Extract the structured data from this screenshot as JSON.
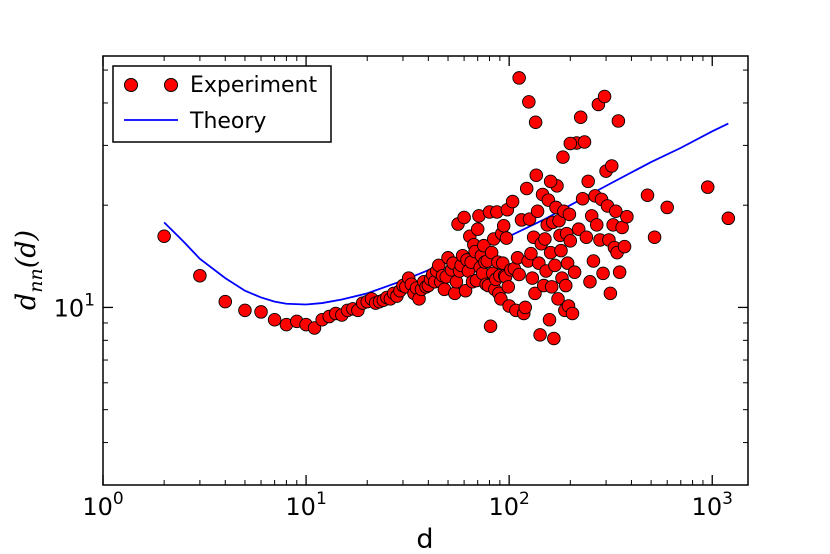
{
  "chart_data": {
    "type": "scatter",
    "title": "",
    "xlabel": "d",
    "ylabel": {
      "base": "d",
      "subscript": "nn",
      "argument": "(d)"
    },
    "xscale": "log",
    "yscale": "log",
    "xlim": [
      1,
      1500
    ],
    "ylim": [
      3.0,
      55
    ],
    "grid": false,
    "legend_position": "top-left",
    "x_ticks": [
      {
        "value": 1,
        "base": "10",
        "exp": "0"
      },
      {
        "value": 10,
        "base": "10",
        "exp": "1"
      },
      {
        "value": 100,
        "base": "10",
        "exp": "2"
      },
      {
        "value": 1000,
        "base": "10",
        "exp": "3"
      }
    ],
    "y_ticks": [
      {
        "value": 10,
        "base": "10",
        "exp": "1"
      }
    ],
    "y_minor_ticks": [
      4,
      5,
      6,
      7,
      8,
      9,
      20,
      30,
      40,
      50
    ],
    "x_minor_ticks": [
      2,
      3,
      4,
      5,
      6,
      7,
      8,
      9,
      20,
      30,
      40,
      50,
      60,
      70,
      80,
      90,
      200,
      300,
      400,
      500,
      600,
      700,
      800,
      900
    ],
    "series": [
      {
        "name": "Experiment",
        "kind": "scatter",
        "color": "#ff0000",
        "edge_color": "#000000",
        "points": [
          [
            2,
            16.2
          ],
          [
            3,
            12.4
          ],
          [
            4,
            10.4
          ],
          [
            5,
            9.8
          ],
          [
            6,
            9.7
          ],
          [
            7,
            9.2
          ],
          [
            8,
            8.9
          ],
          [
            9,
            9.1
          ],
          [
            10,
            8.9
          ],
          [
            11,
            8.7
          ],
          [
            12,
            9.2
          ],
          [
            13,
            9.4
          ],
          [
            14,
            9.6
          ],
          [
            15,
            9.5
          ],
          [
            16,
            9.8
          ],
          [
            17,
            9.9
          ],
          [
            18,
            9.8
          ],
          [
            19,
            10.3
          ],
          [
            20,
            10.4
          ],
          [
            21,
            10.6
          ],
          [
            22,
            10.3
          ],
          [
            23,
            10.4
          ],
          [
            24,
            10.5
          ],
          [
            25,
            10.7
          ],
          [
            26,
            10.6
          ],
          [
            27,
            11.0
          ],
          [
            28,
            10.8
          ],
          [
            29,
            11.2
          ],
          [
            30,
            11.6
          ],
          [
            31,
            11.5
          ],
          [
            32,
            12.2
          ],
          [
            33,
            11.7
          ],
          [
            34,
            11.0
          ],
          [
            35,
            11.4
          ],
          [
            36,
            10.6
          ],
          [
            37,
            11.3
          ],
          [
            38,
            11.9
          ],
          [
            39,
            11.5
          ],
          [
            40,
            11.6
          ],
          [
            41,
            12.1
          ],
          [
            42,
            12.5
          ],
          [
            43,
            11.9
          ],
          [
            44,
            12.8
          ],
          [
            45,
            13.3
          ],
          [
            46,
            11.9
          ],
          [
            47,
            12.4
          ],
          [
            48,
            11.3
          ],
          [
            49,
            12.3
          ],
          [
            50,
            14.0
          ],
          [
            52,
            12.9
          ],
          [
            53,
            13.5
          ],
          [
            54,
            11.0
          ],
          [
            55,
            11.9
          ],
          [
            56,
            17.6
          ],
          [
            57,
            12.8
          ],
          [
            58,
            13.3
          ],
          [
            59,
            14.2
          ],
          [
            60,
            18.4
          ],
          [
            61,
            11.2
          ],
          [
            62,
            13.8
          ],
          [
            63,
            12.8
          ],
          [
            64,
            16.2
          ],
          [
            65,
            13.6
          ],
          [
            66,
            11.9
          ],
          [
            67,
            15.3
          ],
          [
            68,
            14.6
          ],
          [
            69,
            12.0
          ],
          [
            70,
            17.0
          ],
          [
            71,
            18.6
          ],
          [
            72,
            13.1
          ],
          [
            73,
            14.2
          ],
          [
            74,
            12.6
          ],
          [
            75,
            15.2
          ],
          [
            76,
            13.6
          ],
          [
            77,
            11.7
          ],
          [
            78,
            13.7
          ],
          [
            79,
            11.6
          ],
          [
            80,
            19.1
          ],
          [
            81,
            8.8
          ],
          [
            82,
            14.5
          ],
          [
            83,
            12.6
          ],
          [
            84,
            15.9
          ],
          [
            85,
            11.3
          ],
          [
            86,
            12.1
          ],
          [
            87,
            19.1
          ],
          [
            88,
            13.6
          ],
          [
            89,
            11.0
          ],
          [
            90,
            12.4
          ],
          [
            91,
            10.6
          ],
          [
            92,
            16.5
          ],
          [
            93,
            13.5
          ],
          [
            94,
            17.4
          ],
          [
            95,
            12.4
          ],
          [
            96,
            12.3
          ],
          [
            97,
            16.0
          ],
          [
            98,
            19.4
          ],
          [
            99,
            11.5
          ],
          [
            100,
            10.1
          ],
          [
            102,
            12.9
          ],
          [
            104,
            20.5
          ],
          [
            106,
            13.0
          ],
          [
            108,
            9.8
          ],
          [
            110,
            14.0
          ],
          [
            112,
            12.5
          ],
          [
            115,
            18.1
          ],
          [
            118,
            9.6
          ],
          [
            120,
            10.0
          ],
          [
            122,
            22.4
          ],
          [
            124,
            13.7
          ],
          [
            126,
            18.2
          ],
          [
            128,
            14.4
          ],
          [
            130,
            12.2
          ],
          [
            132,
            16.1
          ],
          [
            134,
            11.0
          ],
          [
            136,
            24.5
          ],
          [
            138,
            19.2
          ],
          [
            140,
            13.5
          ],
          [
            142,
            8.3
          ],
          [
            144,
            15.4
          ],
          [
            146,
            21.5
          ],
          [
            148,
            11.6
          ],
          [
            150,
            15.9
          ],
          [
            152,
            12.8
          ],
          [
            154,
            17.5
          ],
          [
            156,
            20.7
          ],
          [
            158,
            9.2
          ],
          [
            160,
            14.5
          ],
          [
            162,
            11.5
          ],
          [
            164,
            17.8
          ],
          [
            166,
            8.1
          ],
          [
            168,
            13.3
          ],
          [
            170,
            19.7
          ],
          [
            172,
            22.8
          ],
          [
            174,
            10.6
          ],
          [
            176,
            18.0
          ],
          [
            178,
            16.3
          ],
          [
            180,
            14.7
          ],
          [
            182,
            12.2
          ],
          [
            184,
            27.7
          ],
          [
            186,
            19.2
          ],
          [
            188,
            9.8
          ],
          [
            190,
            11.6
          ],
          [
            192,
            16.5
          ],
          [
            194,
            13.5
          ],
          [
            196,
            10.1
          ],
          [
            198,
            18.8
          ],
          [
            200,
            15.7
          ],
          [
            205,
            9.6
          ],
          [
            210,
            12.7
          ],
          [
            215,
            30.5
          ],
          [
            220,
            17.0
          ],
          [
            225,
            36.3
          ],
          [
            230,
            20.9
          ],
          [
            235,
            30.7
          ],
          [
            240,
            16.1
          ],
          [
            245,
            23.5
          ],
          [
            250,
            11.9
          ],
          [
            255,
            18.6
          ],
          [
            260,
            13.7
          ],
          [
            265,
            21.3
          ],
          [
            270,
            17.5
          ],
          [
            275,
            39.6
          ],
          [
            280,
            15.8
          ],
          [
            285,
            20.8
          ],
          [
            290,
            12.6
          ],
          [
            295,
            41.8
          ],
          [
            300,
            25.2
          ],
          [
            305,
            19.9
          ],
          [
            310,
            15.8
          ],
          [
            315,
            11.0
          ],
          [
            320,
            26.1
          ],
          [
            325,
            17.5
          ],
          [
            330,
            15.0
          ],
          [
            335,
            19.2
          ],
          [
            340,
            14.5
          ],
          [
            345,
            35.4
          ],
          [
            350,
            12.7
          ],
          [
            360,
            17.2
          ],
          [
            370,
            15.1
          ],
          [
            380,
            18.5
          ],
          [
            480,
            21.4
          ],
          [
            520,
            16.1
          ],
          [
            600,
            19.7
          ],
          [
            950,
            22.6
          ],
          [
            1200,
            18.3
          ],
          [
            112,
            47.4
          ],
          [
            125,
            40.3
          ],
          [
            135,
            35.1
          ],
          [
            160,
            23.5
          ],
          [
            200,
            30.4
          ]
        ]
      },
      {
        "name": "Theory",
        "kind": "line",
        "color": "#0000ff",
        "points": [
          [
            2,
            17.8
          ],
          [
            2.5,
            15.6
          ],
          [
            3,
            13.9
          ],
          [
            4,
            12.2
          ],
          [
            5,
            11.2
          ],
          [
            6,
            10.7
          ],
          [
            7,
            10.4
          ],
          [
            8,
            10.25
          ],
          [
            10,
            10.2
          ],
          [
            12,
            10.3
          ],
          [
            15,
            10.55
          ],
          [
            20,
            11.0
          ],
          [
            30,
            12.0
          ],
          [
            50,
            13.6
          ],
          [
            70,
            14.8
          ],
          [
            100,
            16.2
          ],
          [
            150,
            18.2
          ],
          [
            200,
            20.0
          ],
          [
            300,
            22.8
          ],
          [
            500,
            26.8
          ],
          [
            700,
            29.5
          ],
          [
            1000,
            33.0
          ],
          [
            1200,
            34.8
          ]
        ]
      }
    ]
  }
}
